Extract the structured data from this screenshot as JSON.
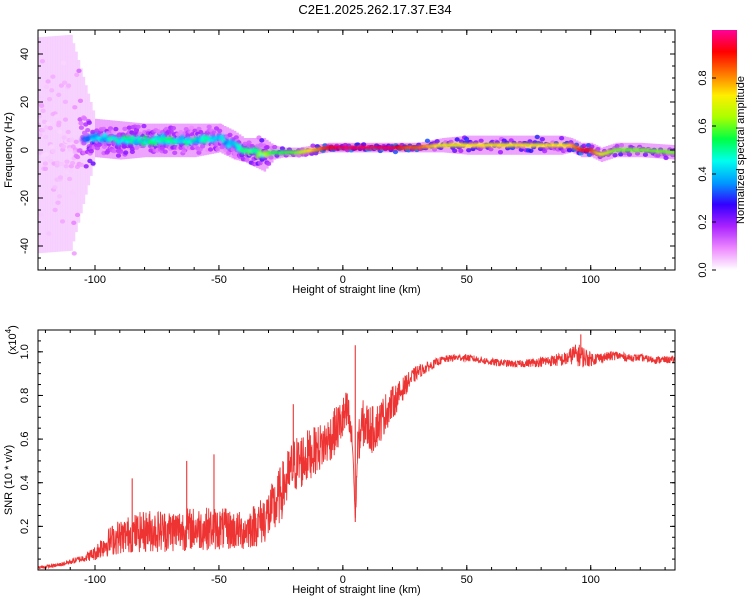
{
  "figure_title": "C2E1.2025.262.17.37.E34",
  "colors": {
    "snr_line": "#ee3333",
    "spectral_points": "#7711ee",
    "axis": "#000000"
  },
  "chart_data": [
    {
      "type": "heatmap",
      "panel": "spectrogram",
      "title": "C2E1.2025.262.17.37.E34",
      "xlabel": "Height of straight line (km)",
      "ylabel": "Frequency (Hz)",
      "xlim": [
        -123,
        134
      ],
      "ylim": [
        -50,
        50
      ],
      "x_ticks": [
        -100,
        -50,
        0,
        50,
        100
      ],
      "x_tick_labels": [
        "-100",
        "-50",
        "0",
        "50",
        "100"
      ],
      "y_ticks": [
        -40,
        -20,
        0,
        20,
        40
      ],
      "y_tick_labels": [
        "-40",
        "-20",
        "0",
        "20",
        "40"
      ],
      "colorbar": {
        "label": "Normalized spectral amplitude",
        "range": [
          0,
          1
        ],
        "ticks": [
          0.0,
          0.2,
          0.4,
          0.6,
          0.8
        ],
        "tick_labels": [
          "0.0",
          "0.2",
          "0.4",
          "0.6",
          "0.8"
        ],
        "colormap": [
          "#ffffff",
          "#ee88ff",
          "#aa22ff",
          "#3300ff",
          "#0099ff",
          "#00ffee",
          "#00ff44",
          "#aaff00",
          "#ffee00",
          "#ff7700",
          "#ff0000",
          "#ff0099"
        ]
      },
      "ridge": {
        "x": [
          -123,
          -110,
          -100,
          -90,
          -80,
          -70,
          -60,
          -50,
          -44,
          -40,
          -36,
          -32,
          -28,
          -24,
          -18,
          -12,
          -6,
          0,
          10,
          20,
          26,
          30,
          40,
          50,
          60,
          70,
          80,
          88,
          92,
          96,
          100,
          104,
          110,
          120,
          134
        ],
        "freq_hz": [
          2,
          3,
          5,
          4,
          4,
          4,
          4,
          5,
          2,
          0,
          -1,
          -2,
          -1,
          -1,
          -1,
          0,
          1,
          1,
          1,
          1,
          1,
          1,
          2,
          2,
          2,
          2,
          2,
          2,
          2,
          0,
          0,
          -2,
          0,
          0,
          -1
        ],
        "spread_hz": [
          45,
          45,
          8,
          8,
          7,
          7,
          7,
          6,
          6,
          5,
          6,
          7,
          3,
          2,
          2,
          2,
          2,
          2,
          2,
          2,
          2,
          2,
          3,
          4,
          4,
          4,
          4,
          4,
          3,
          3,
          3,
          3,
          3,
          3,
          3
        ],
        "amplitude": [
          0.12,
          0.12,
          0.45,
          0.5,
          0.5,
          0.5,
          0.5,
          0.45,
          0.4,
          0.55,
          0.6,
          0.6,
          0.55,
          0.55,
          0.6,
          0.75,
          0.9,
          0.95,
          0.95,
          0.95,
          0.85,
          0.85,
          0.7,
          0.72,
          0.72,
          0.72,
          0.72,
          0.72,
          0.75,
          0.9,
          0.9,
          0.7,
          0.6,
          0.6,
          0.6
        ]
      }
    },
    {
      "type": "line",
      "panel": "snr",
      "xlabel": "Height of straight line (km)",
      "ylabel": "SNR (10 * v/v)",
      "y_scale_label": "(x10",
      "y_scale_exponent": "4",
      "y_scale_close": ")",
      "xlim": [
        -123,
        134
      ],
      "ylim": [
        0,
        1.1
      ],
      "x_ticks": [
        -100,
        -50,
        0,
        50,
        100
      ],
      "x_tick_labels": [
        "-100",
        "-50",
        "0",
        "50",
        "100"
      ],
      "y_ticks": [
        0.2,
        0.4,
        0.6,
        0.8,
        1.0
      ],
      "y_tick_labels": [
        "0.2",
        "0.4",
        "0.6",
        "0.8",
        "1.0"
      ],
      "series": [
        {
          "name": "SNR",
          "x": [
            -123,
            -115,
            -105,
            -100,
            -97,
            -92,
            -85,
            -78,
            -70,
            -60,
            -50,
            -40,
            -33,
            -28,
            -24,
            -20,
            -16,
            -12,
            -8,
            -4,
            -1,
            2,
            4,
            5,
            6,
            8,
            12,
            15,
            18,
            22,
            26,
            30,
            35,
            40,
            45,
            50,
            55,
            60,
            70,
            80,
            90,
            93,
            96,
            100,
            105,
            110,
            115,
            120,
            125,
            134
          ],
          "y": [
            0.01,
            0.02,
            0.05,
            0.07,
            0.1,
            0.13,
            0.15,
            0.16,
            0.16,
            0.17,
            0.17,
            0.16,
            0.2,
            0.25,
            0.35,
            0.45,
            0.48,
            0.52,
            0.55,
            0.6,
            0.65,
            0.7,
            0.55,
            0.22,
            0.55,
            0.65,
            0.62,
            0.66,
            0.72,
            0.78,
            0.85,
            0.9,
            0.93,
            0.96,
            0.97,
            0.97,
            0.96,
            0.95,
            0.94,
            0.95,
            0.96,
            0.98,
            0.97,
            0.96,
            0.97,
            0.98,
            0.97,
            0.97,
            0.96,
            0.96
          ],
          "noise": [
            0.005,
            0.008,
            0.015,
            0.03,
            0.05,
            0.07,
            0.08,
            0.09,
            0.09,
            0.09,
            0.09,
            0.08,
            0.1,
            0.12,
            0.12,
            0.12,
            0.12,
            0.1,
            0.1,
            0.1,
            0.1,
            0.1,
            0.06,
            0.02,
            0.08,
            0.1,
            0.1,
            0.09,
            0.08,
            0.06,
            0.04,
            0.03,
            0.02,
            0.015,
            0.015,
            0.015,
            0.015,
            0.015,
            0.015,
            0.02,
            0.03,
            0.04,
            0.05,
            0.03,
            0.02,
            0.02,
            0.015,
            0.015,
            0.015,
            0.015
          ]
        }
      ],
      "spikes": [
        {
          "x": 5,
          "y": 1.03
        },
        {
          "x": -20,
          "y": 0.76
        },
        {
          "x": 96,
          "y": 1.08
        },
        {
          "x": -52,
          "y": 0.53
        },
        {
          "x": -63,
          "y": 0.5
        },
        {
          "x": -85,
          "y": 0.42
        }
      ]
    }
  ]
}
